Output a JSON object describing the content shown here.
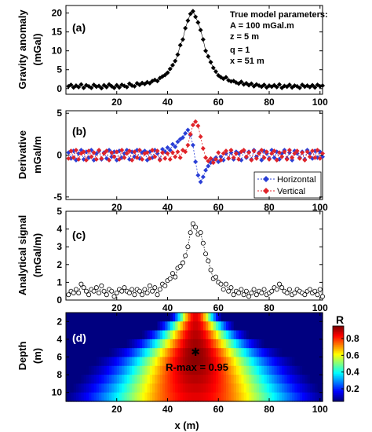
{
  "chart_data": [
    {
      "id": "a",
      "type": "scatter",
      "panel_label": "(a)",
      "ylabel": "Gravity anomaly\n(mGal)",
      "xlim": [
        0,
        101
      ],
      "ylim": [
        -1.5,
        22
      ],
      "xticks": [
        20,
        40,
        60,
        80,
        100
      ],
      "yticks": [
        0,
        5,
        10,
        15,
        20
      ],
      "annotation": [
        "True model parameters:",
        "A = 100 mGal.m",
        "z = 5 m",
        "q = 1",
        "x = 51 m"
      ],
      "series": [
        {
          "marker": "diamond-black",
          "x": [
            1,
            2,
            3,
            4,
            5,
            6,
            7,
            8,
            9,
            10,
            11,
            12,
            13,
            14,
            15,
            16,
            17,
            18,
            19,
            20,
            21,
            22,
            23,
            24,
            25,
            26,
            27,
            28,
            29,
            30,
            31,
            32,
            33,
            34,
            35,
            36,
            37,
            38,
            39,
            40,
            41,
            42,
            43,
            44,
            45,
            46,
            47,
            48,
            49,
            50,
            51,
            52,
            53,
            54,
            55,
            56,
            57,
            58,
            59,
            60,
            61,
            62,
            63,
            64,
            65,
            66,
            67,
            68,
            69,
            70,
            71,
            72,
            73,
            74,
            75,
            76,
            77,
            78,
            79,
            80,
            81,
            82,
            83,
            84,
            85,
            86,
            87,
            88,
            89,
            90,
            91,
            92,
            93,
            94,
            95,
            96,
            97,
            98,
            99,
            100,
            101
          ],
          "y": [
            0.6,
            1.0,
            0.3,
            0.8,
            0.4,
            1.1,
            0.2,
            0.9,
            0.6,
            0.2,
            1.0,
            0.5,
            0.7,
            0.1,
            0.9,
            0.4,
            1.1,
            0.6,
            0.2,
            0.9,
            0.3,
            1.0,
            0.7,
            0.4,
            1.3,
            0.8,
            0.6,
            1.4,
            1.0,
            1.5,
            1.2,
            1.7,
            1.4,
            2.0,
            2.3,
            2.0,
            2.8,
            3.2,
            3.6,
            4.2,
            5.2,
            6.2,
            7.3,
            9.0,
            11.5,
            13.0,
            16.0,
            18.0,
            19.8,
            20.5,
            19.0,
            17.5,
            15.5,
            13.0,
            10.0,
            8.5,
            7.0,
            5.5,
            4.5,
            3.5,
            3.0,
            2.6,
            3.0,
            2.2,
            1.9,
            2.0,
            1.6,
            1.3,
            1.8,
            1.1,
            1.4,
            0.9,
            1.3,
            0.6,
            1.1,
            0.8,
            0.5,
            1.0,
            0.3,
            0.8,
            0.5,
            0.9,
            0.4,
            1.1,
            0.2,
            0.7,
            0.5,
            1.0,
            0.3,
            0.8,
            0.6,
            0.2,
            1.0,
            0.5,
            0.8,
            0.4,
            0.9,
            0.3,
            1.0,
            0.6,
            0.8
          ]
        }
      ]
    },
    {
      "id": "b",
      "type": "line",
      "panel_label": "(b)",
      "ylabel": "Derivative\nmGal/m",
      "xlim": [
        0,
        101
      ],
      "ylim": [
        -5.3,
        5.3
      ],
      "xticks": [
        20,
        40,
        60,
        80,
        100
      ],
      "yticks": [
        -5,
        0,
        5
      ],
      "legend": "bottom-right",
      "series": [
        {
          "name": "Horizontal",
          "color": "#2a3fd6",
          "x": [
            1,
            2,
            3,
            4,
            5,
            6,
            7,
            8,
            9,
            10,
            11,
            12,
            13,
            14,
            15,
            16,
            17,
            18,
            19,
            20,
            21,
            22,
            23,
            24,
            25,
            26,
            27,
            28,
            29,
            30,
            31,
            32,
            33,
            34,
            35,
            36,
            37,
            38,
            39,
            40,
            41,
            42,
            43,
            44,
            45,
            46,
            47,
            48,
            49,
            50,
            51,
            52,
            53,
            54,
            55,
            56,
            57,
            58,
            59,
            60,
            61,
            62,
            63,
            64,
            65,
            66,
            67,
            68,
            69,
            70,
            71,
            72,
            73,
            74,
            75,
            76,
            77,
            78,
            79,
            80,
            81,
            82,
            83,
            84,
            85,
            86,
            87,
            88,
            89,
            90,
            91,
            92,
            93,
            94,
            95,
            96,
            97,
            98,
            99,
            100,
            101
          ],
          "y": [
            0.3,
            -0.4,
            0.5,
            -0.6,
            0.2,
            0.6,
            -0.5,
            0.4,
            -0.3,
            0.6,
            -0.6,
            0.2,
            0.5,
            -0.5,
            0.3,
            -0.4,
            0.6,
            -0.2,
            0.4,
            -0.6,
            0.5,
            -0.3,
            0.2,
            0.6,
            -0.5,
            0.4,
            -0.2,
            0.6,
            -0.4,
            0.3,
            0.5,
            -0.6,
            0.4,
            -0.3,
            0.6,
            0.2,
            -0.5,
            0.7,
            0.4,
            0.9,
            0.6,
            1.3,
            1.0,
            1.6,
            1.9,
            2.1,
            2.6,
            3.0,
            2.4,
            1.2,
            -0.8,
            -2.4,
            -3.2,
            -2.6,
            -1.8,
            -1.3,
            -0.9,
            -0.6,
            -0.3,
            -0.8,
            -0.2,
            -0.6,
            0.2,
            -0.4,
            0.3,
            -0.5,
            0.4,
            0.2,
            -0.6,
            0.5,
            -0.3,
            0.4,
            -0.5,
            0.6,
            -0.2,
            0.3,
            -0.6,
            0.5,
            0.2,
            -0.4,
            0.6,
            -0.3,
            0.4,
            -0.5,
            0.2,
            0.6,
            -0.4,
            0.3,
            -0.6,
            0.5,
            0.2,
            -0.3,
            0.4,
            -0.5,
            0.6,
            0.2,
            -0.4,
            0.5,
            -0.3,
            0.4,
            -0.2
          ]
        },
        {
          "name": "Vertical",
          "color": "#e0242a",
          "x": [
            1,
            2,
            3,
            4,
            5,
            6,
            7,
            8,
            9,
            10,
            11,
            12,
            13,
            14,
            15,
            16,
            17,
            18,
            19,
            20,
            21,
            22,
            23,
            24,
            25,
            26,
            27,
            28,
            29,
            30,
            31,
            32,
            33,
            34,
            35,
            36,
            37,
            38,
            39,
            40,
            41,
            42,
            43,
            44,
            45,
            46,
            47,
            48,
            49,
            50,
            51,
            52,
            53,
            54,
            55,
            56,
            57,
            58,
            59,
            60,
            61,
            62,
            63,
            64,
            65,
            66,
            67,
            68,
            69,
            70,
            71,
            72,
            73,
            74,
            75,
            76,
            77,
            78,
            79,
            80,
            81,
            82,
            83,
            84,
            85,
            86,
            87,
            88,
            89,
            90,
            91,
            92,
            93,
            94,
            95,
            96,
            97,
            98,
            99,
            100,
            101
          ],
          "y": [
            -0.4,
            0.5,
            -0.3,
            0.6,
            -0.5,
            0.2,
            0.4,
            -0.6,
            0.5,
            -0.2,
            0.3,
            -0.5,
            0.6,
            -0.4,
            0.2,
            0.5,
            -0.6,
            0.3,
            -0.2,
            0.4,
            -0.5,
            0.6,
            -0.3,
            0.2,
            0.5,
            -0.6,
            0.4,
            -0.3,
            0.6,
            -0.5,
            0.2,
            0.3,
            -0.4,
            0.6,
            -0.2,
            0.5,
            -0.6,
            0.3,
            -0.4,
            0.2,
            -0.5,
            0.3,
            -0.2,
            0.4,
            -0.3,
            0.6,
            0.4,
            1.2,
            2.5,
            3.6,
            4.0,
            3.5,
            2.2,
            0.8,
            -0.3,
            -0.7,
            -0.4,
            -0.9,
            -0.5,
            0.3,
            -0.6,
            0.2,
            0.5,
            -0.4,
            0.6,
            -0.3,
            0.2,
            -0.5,
            0.4,
            0.6,
            -0.2,
            0.3,
            -0.6,
            0.5,
            -0.4,
            0.2,
            0.6,
            -0.3,
            0.4,
            -0.5,
            0.2,
            0.5,
            -0.6,
            0.3,
            -0.2,
            0.4,
            -0.5,
            0.6,
            -0.3,
            0.2,
            0.5,
            -0.4,
            0.3,
            -0.6,
            0.4,
            -0.2,
            0.5,
            -0.3,
            0.6,
            -0.4,
            0.2
          ]
        }
      ]
    },
    {
      "id": "c",
      "type": "line",
      "panel_label": "(c)",
      "ylabel": "Analytical signal\n(mGal/m)",
      "xlim": [
        0,
        101
      ],
      "ylim": [
        0,
        5
      ],
      "xticks": [
        20,
        40,
        60,
        80,
        100
      ],
      "yticks": [
        0,
        1,
        2,
        3,
        4,
        5
      ],
      "series": [
        {
          "marker": "open-circle",
          "x": [
            1,
            2,
            3,
            4,
            5,
            6,
            7,
            8,
            9,
            10,
            11,
            12,
            13,
            14,
            15,
            16,
            17,
            18,
            19,
            20,
            21,
            22,
            23,
            24,
            25,
            26,
            27,
            28,
            29,
            30,
            31,
            32,
            33,
            34,
            35,
            36,
            37,
            38,
            39,
            40,
            41,
            42,
            43,
            44,
            45,
            46,
            47,
            48,
            49,
            50,
            51,
            52,
            53,
            54,
            55,
            56,
            57,
            58,
            59,
            60,
            61,
            62,
            63,
            64,
            65,
            66,
            67,
            68,
            69,
            70,
            71,
            72,
            73,
            74,
            75,
            76,
            77,
            78,
            79,
            80,
            81,
            82,
            83,
            84,
            85,
            86,
            87,
            88,
            89,
            90,
            91,
            92,
            93,
            94,
            95,
            96,
            97,
            98,
            99,
            100,
            101
          ],
          "y": [
            0.3,
            0.5,
            0.4,
            0.6,
            0.4,
            0.9,
            0.7,
            0.5,
            0.3,
            0.6,
            0.5,
            0.7,
            0.4,
            0.8,
            0.5,
            0.3,
            0.6,
            0.5,
            0.2,
            0.4,
            0.6,
            0.5,
            0.7,
            0.5,
            0.4,
            0.6,
            0.3,
            0.6,
            0.5,
            0.3,
            0.6,
            0.4,
            0.8,
            0.5,
            0.7,
            0.3,
            0.6,
            0.9,
            0.8,
            1.1,
            1.2,
            1.5,
            1.3,
            1.8,
            1.9,
            2.1,
            2.5,
            3.0,
            3.8,
            4.3,
            4.1,
            3.7,
            3.8,
            3.2,
            2.6,
            2.2,
            1.7,
            1.2,
            1.3,
            1.0,
            0.9,
            0.6,
            0.9,
            0.5,
            0.7,
            0.3,
            0.5,
            0.4,
            0.6,
            0.3,
            0.5,
            0.2,
            0.4,
            0.6,
            0.3,
            0.5,
            0.4,
            0.6,
            0.3,
            0.4,
            0.5,
            0.7,
            0.6,
            0.9,
            0.7,
            0.5,
            0.4,
            0.6,
            0.3,
            0.4,
            0.6,
            0.5,
            0.4,
            0.3,
            0.5,
            0.6,
            0.4,
            0.5,
            0.3,
            0.6,
            0.2
          ]
        }
      ]
    },
    {
      "id": "d",
      "type": "heatmap",
      "panel_label": "(d)",
      "ylabel": "Depth\n(m)",
      "xlabel": "x (m)",
      "xlim": [
        0,
        101
      ],
      "ylim": [
        11,
        1
      ],
      "xticks": [
        20,
        40,
        60,
        80,
        100
      ],
      "yticks": [
        2,
        4,
        6,
        8,
        10
      ],
      "peak": {
        "x": 51,
        "z": 5.5,
        "label": "R-max = 0.95"
      },
      "colorbar": {
        "label": "R",
        "ticks": [
          0.2,
          0.4,
          0.6,
          0.8
        ],
        "range": [
          0.05,
          0.95
        ]
      }
    }
  ]
}
